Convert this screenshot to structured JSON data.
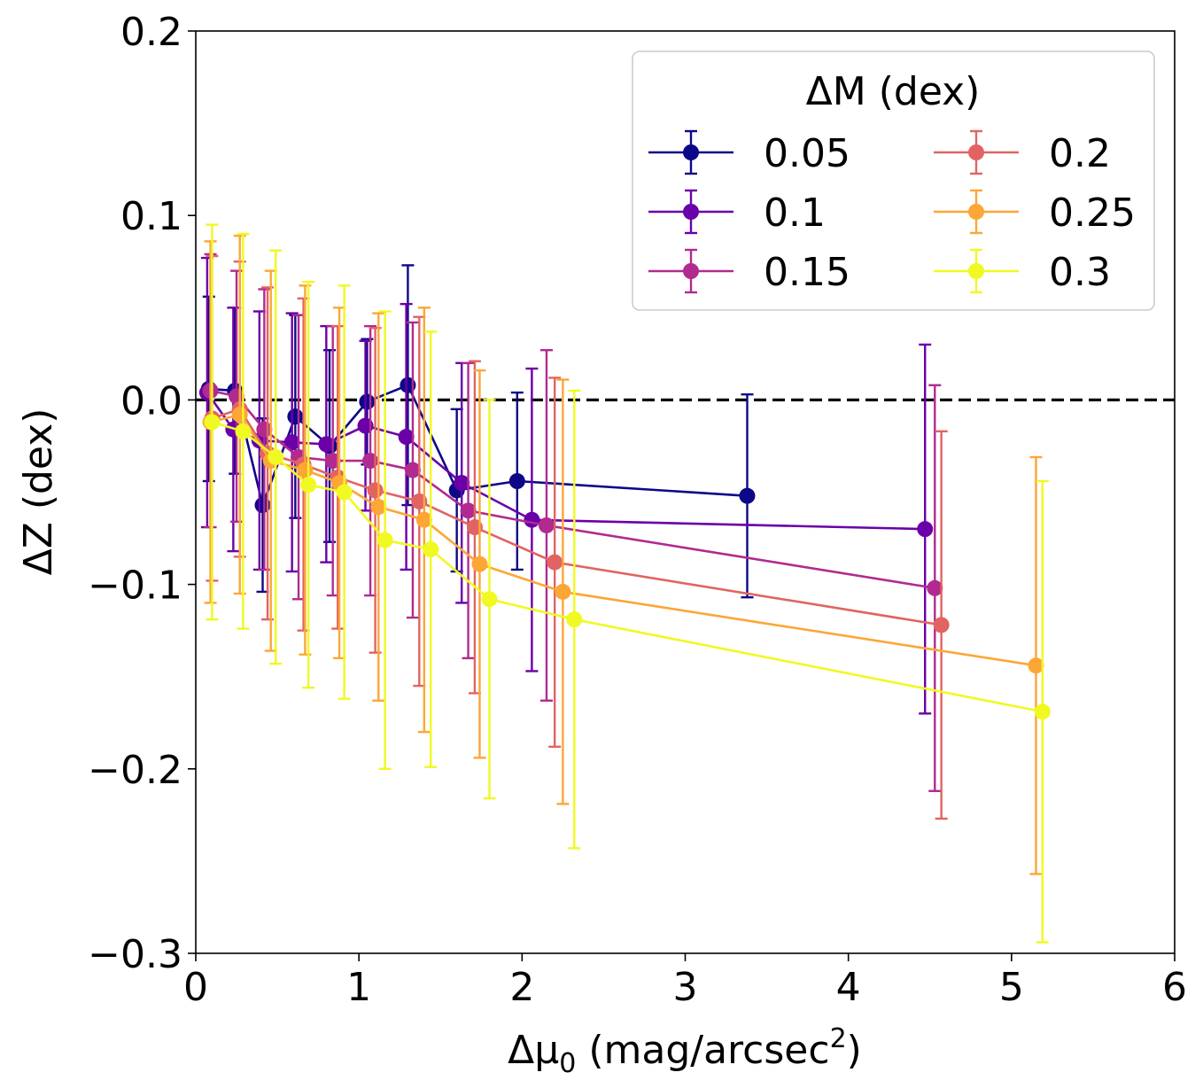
{
  "chart_data": {
    "type": "line",
    "subtype": "errorbar",
    "title": "",
    "xlabel_main": "Δμ",
    "xlabel_sub": "0",
    "xlabel_unit": " (mag/arcsec",
    "xlabel_sup": "2",
    "xlabel_close": ")",
    "ylabel": "ΔZ (dex)",
    "xlim": [
      0,
      6
    ],
    "ylim": [
      -0.3,
      0.2
    ],
    "xticks": [
      0,
      1,
      2,
      3,
      4,
      5,
      6
    ],
    "xtick_labels": [
      "0",
      "1",
      "2",
      "3",
      "4",
      "5",
      "6"
    ],
    "yticks": [
      0.2,
      0.1,
      0.0,
      -0.1,
      -0.2,
      -0.3
    ],
    "ytick_labels": [
      "0.2",
      "0.1",
      "0.0",
      "−0.1",
      "−0.2",
      "−0.3"
    ],
    "reference_line": {
      "y": 0.0,
      "style": "dashed",
      "color": "#000000"
    },
    "grid": false,
    "legend": {
      "title": "ΔM (dex)",
      "placement": "top-right",
      "columns": 2
    },
    "series": [
      {
        "name": "0.05",
        "color": "#0d0887",
        "x": [
          0.08,
          0.24,
          0.41,
          0.61,
          0.82,
          1.05,
          1.3,
          1.6,
          1.97,
          3.38
        ],
        "y": [
          0.006,
          0.005,
          -0.057,
          -0.009,
          -0.025,
          -0.001,
          0.008,
          -0.049,
          -0.044,
          -0.052
        ],
        "err": [
          0.05,
          0.045,
          0.047,
          0.055,
          0.052,
          0.034,
          0.065,
          0.044,
          0.048,
          0.055
        ]
      },
      {
        "name": "0.1",
        "color": "#6a00a8",
        "x": [
          0.07,
          0.23,
          0.39,
          0.59,
          0.8,
          1.04,
          1.29,
          1.63,
          2.06,
          4.47
        ],
        "y": [
          0.004,
          -0.016,
          -0.022,
          -0.023,
          -0.024,
          -0.014,
          -0.02,
          -0.045,
          -0.065,
          -0.07
        ],
        "err": [
          0.073,
          0.066,
          0.07,
          0.07,
          0.064,
          0.046,
          0.072,
          0.065,
          0.082,
          0.1
        ]
      },
      {
        "name": "0.15",
        "color": "#b12a90",
        "x": [
          0.09,
          0.25,
          0.42,
          0.63,
          0.84,
          1.07,
          1.33,
          1.67,
          2.15,
          4.53
        ],
        "y": [
          0.005,
          0.002,
          -0.016,
          -0.031,
          -0.033,
          -0.033,
          -0.038,
          -0.06,
          -0.068,
          -0.102
        ],
        "err": [
          0.074,
          0.068,
          0.076,
          0.077,
          0.073,
          0.073,
          0.08,
          0.08,
          0.095,
          0.11
        ]
      },
      {
        "name": "0.2",
        "color": "#e16462",
        "x": [
          0.1,
          0.27,
          0.44,
          0.66,
          0.87,
          1.1,
          1.37,
          1.71,
          2.2,
          4.57
        ],
        "y": [
          -0.01,
          -0.005,
          -0.029,
          -0.035,
          -0.042,
          -0.049,
          -0.055,
          -0.069,
          -0.088,
          -0.122
        ],
        "err": [
          0.088,
          0.08,
          0.09,
          0.09,
          0.082,
          0.088,
          0.1,
          0.09,
          0.1,
          0.105
        ]
      },
      {
        "name": "0.25",
        "color": "#fca636",
        "x": [
          0.09,
          0.27,
          0.46,
          0.67,
          0.88,
          1.12,
          1.4,
          1.74,
          2.25,
          5.15
        ],
        "y": [
          -0.012,
          -0.008,
          -0.033,
          -0.038,
          -0.045,
          -0.058,
          -0.065,
          -0.089,
          -0.104,
          -0.144
        ],
        "err": [
          0.098,
          0.097,
          0.103,
          0.1,
          0.095,
          0.105,
          0.115,
          0.105,
          0.115,
          0.113
        ]
      },
      {
        "name": "0.3",
        "color": "#f0f921",
        "x": [
          0.1,
          0.29,
          0.49,
          0.69,
          0.91,
          1.16,
          1.44,
          1.8,
          2.32,
          5.19
        ],
        "y": [
          -0.012,
          -0.017,
          -0.031,
          -0.046,
          -0.05,
          -0.076,
          -0.081,
          -0.108,
          -0.119,
          -0.169
        ],
        "err": [
          0.107,
          0.107,
          0.112,
          0.11,
          0.112,
          0.124,
          0.118,
          0.108,
          0.124,
          0.125
        ]
      }
    ]
  }
}
